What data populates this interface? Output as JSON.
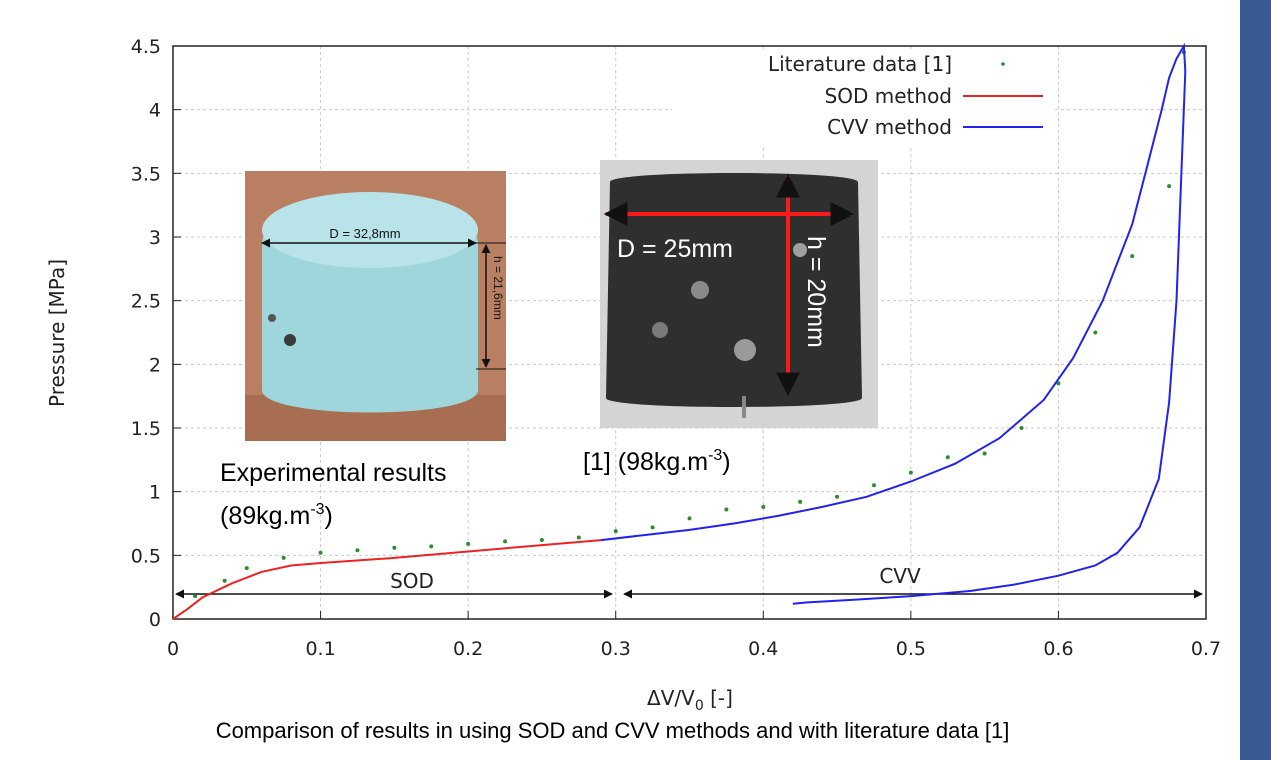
{
  "chart_data": {
    "type": "line",
    "xlabel": "ΔV/V0 [-]",
    "ylabel": "Pressure [MPa]",
    "xlim": [
      0,
      0.7
    ],
    "ylim": [
      0,
      4.5
    ],
    "xticks": [
      "0",
      "0.1",
      "0.2",
      "0.3",
      "0.4",
      "0.5",
      "0.6",
      "0.7"
    ],
    "yticks": [
      "0",
      "0.5",
      "1",
      "1.5",
      "2",
      "2.5",
      "3",
      "3.5",
      "4",
      "4.5"
    ],
    "grid": true,
    "legend_position": "top-right",
    "series": [
      {
        "name": "Literature data [1]",
        "style": "points",
        "color": "#2e8b2e",
        "x": [
          0.015,
          0.035,
          0.05,
          0.075,
          0.1,
          0.125,
          0.15,
          0.175,
          0.2,
          0.225,
          0.25,
          0.275,
          0.3,
          0.325,
          0.35,
          0.375,
          0.4,
          0.425,
          0.45,
          0.475,
          0.5,
          0.525,
          0.55,
          0.575,
          0.6,
          0.625,
          0.65,
          0.675,
          0.685
        ],
        "y": [
          0.18,
          0.3,
          0.4,
          0.48,
          0.52,
          0.54,
          0.56,
          0.57,
          0.59,
          0.61,
          0.62,
          0.64,
          0.69,
          0.72,
          0.79,
          0.86,
          0.88,
          0.92,
          0.96,
          1.05,
          1.15,
          1.27,
          1.3,
          1.5,
          1.85,
          2.25,
          2.85,
          3.4,
          4.45
        ]
      },
      {
        "name": "SOD method",
        "style": "line",
        "color": "#ee2222",
        "x": [
          0,
          0.01,
          0.02,
          0.04,
          0.06,
          0.08,
          0.1,
          0.15,
          0.2,
          0.25,
          0.29
        ],
        "y": [
          0,
          0.08,
          0.17,
          0.28,
          0.37,
          0.42,
          0.44,
          0.48,
          0.53,
          0.58,
          0.62
        ]
      },
      {
        "name": "CVV method",
        "style": "line",
        "color": "#2222ee",
        "x": [
          0.29,
          0.32,
          0.35,
          0.38,
          0.41,
          0.44,
          0.47,
          0.5,
          0.53,
          0.56,
          0.59,
          0.61,
          0.63,
          0.65,
          0.66,
          0.67,
          0.675,
          0.68,
          0.685,
          0.686,
          0.68,
          0.675,
          0.668,
          0.655,
          0.64,
          0.625,
          0.6,
          0.57,
          0.54,
          0.5,
          0.46,
          0.43,
          0.42
        ],
        "y": [
          0.62,
          0.66,
          0.7,
          0.75,
          0.81,
          0.88,
          0.96,
          1.08,
          1.22,
          1.42,
          1.72,
          2.05,
          2.5,
          3.1,
          3.55,
          4.0,
          4.25,
          4.4,
          4.5,
          4.3,
          2.5,
          1.7,
          1.1,
          0.72,
          0.52,
          0.42,
          0.34,
          0.27,
          0.22,
          0.18,
          0.15,
          0.13,
          0.12
        ]
      }
    ],
    "region_labels": [
      "SOD",
      "CVV"
    ],
    "region_spans": [
      [
        0,
        0.295
      ],
      [
        0.3,
        0.7
      ]
    ]
  },
  "photos": {
    "left": {
      "diameter_label": "D = 32,8mm",
      "height_label": "h = 21,6mm",
      "caption_line1": "Experimental results",
      "caption_line2": "(89kg.m",
      "caption_sup": "-3",
      "caption_end": ")"
    },
    "right": {
      "diameter_label": "D = 25mm",
      "height_label": "h = 20mm",
      "caption": "[1] (98kg.m",
      "caption_sup": "-3",
      "caption_end": ")"
    }
  },
  "caption": "Comparison of  results in using SOD and CVV methods and with literature data [1]",
  "colors": {
    "grid": "#c8c8c8",
    "axis": "#222222",
    "sidebar": "#3a5a95",
    "foam_light": "#9fd6dc",
    "foam_bg": "#b97f62",
    "literature_photo_bg": "#d4d4d4"
  }
}
